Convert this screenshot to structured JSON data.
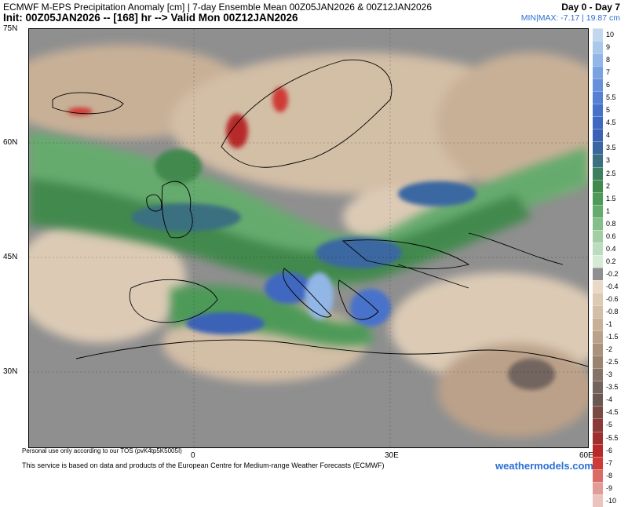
{
  "header": {
    "title": "ECMWF M-EPS Precipitation Anomaly [cm] | 7-day Ensemble Mean 00Z05JAN2026 & 00Z12JAN2026",
    "init": "Init: 00Z05JAN2026 -- [168] hr --> Valid Mon 00Z12JAN2026",
    "period": "Day 0 - Day 7",
    "minmax": "MIN|MAX: -7.17 | 19.87 cm"
  },
  "axes": {
    "lat_labels": [
      "75N",
      "60N",
      "45N",
      "30N"
    ],
    "lon_labels": [
      "0",
      "30E",
      "60E"
    ]
  },
  "colorbar": {
    "levels": [
      "10",
      "9",
      "8",
      "7",
      "6",
      "5.5",
      "5",
      "4.5",
      "4",
      "3.5",
      "3",
      "2.5",
      "2",
      "1.5",
      "1",
      "0.8",
      "0.6",
      "0.4",
      "0.2",
      "-0.2",
      "-0.4",
      "-0.6",
      "-0.8",
      "-1",
      "-1.5",
      "-2",
      "-2.5",
      "-3",
      "-3.5",
      "-4",
      "-4.5",
      "-5",
      "-5.5",
      "-6",
      "-7",
      "-8",
      "-9",
      "-10"
    ],
    "colors": [
      "#c2d8ef",
      "#aac8ea",
      "#92b6e6",
      "#7aa2e0",
      "#6790db",
      "#5680d3",
      "#4872ca",
      "#3f68c0",
      "#3a62b6",
      "#3a67a0",
      "#3b7080",
      "#3d7f5e",
      "#42894e",
      "#4e9a59",
      "#66ab6e",
      "#84be88",
      "#a1cea3",
      "#bcdcbd",
      "#d5ebd5",
      "#8f8f8f",
      "#e9d9c6",
      "#dccab5",
      "#d3bea6",
      "#c8b097",
      "#bba189",
      "#aa927c",
      "#988471",
      "#857367",
      "#72655e",
      "#6a5853",
      "#7a4a44",
      "#8a3a38",
      "#9e2f2f",
      "#b72a29",
      "#cf3a36",
      "#d96c67",
      "#e29c98",
      "#ecc3bf"
    ]
  },
  "footer": {
    "notice": "Personal use only according to our TOS (pvK4tp5K5005I)",
    "source": "This service is based on data and products of the European Centre for Medium-range Weather Forecasts (ECMWF)",
    "brand": "weathermodels.com"
  }
}
